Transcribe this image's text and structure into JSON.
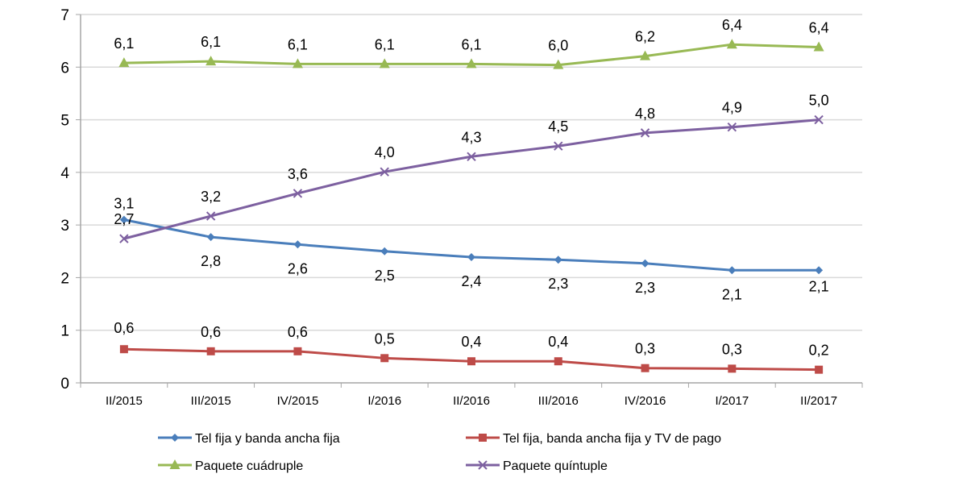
{
  "chart_data": {
    "type": "line",
    "title": "",
    "xlabel": "",
    "ylabel": "",
    "ylim": [
      0,
      7
    ],
    "yticks": [
      "0",
      "1",
      "2",
      "3",
      "4",
      "5",
      "6",
      "7"
    ],
    "grid": true,
    "legend_position": "bottom",
    "categories": [
      "II/2015",
      "III/2015",
      "IV/2015",
      "I/2016",
      "II/2016",
      "III/2016",
      "IV/2016",
      "I/2017",
      "II/2017"
    ],
    "series": [
      {
        "name": "Tel fija y banda ancha fija",
        "color": "#4a7ebb",
        "marker": "diamond",
        "label_position": "mixed",
        "values": [
          3.1,
          2.77,
          2.63,
          2.5,
          2.39,
          2.34,
          2.27,
          2.14,
          2.14
        ],
        "labels": [
          "3,1",
          "2,8",
          "2,6",
          "2,5",
          "2,4",
          "2,3",
          "2,3",
          "2,1",
          "2,1"
        ]
      },
      {
        "name": "Tel fija, banda ancha fija y TV de pago",
        "color": "#be4b48",
        "marker": "square",
        "label_position": "above",
        "values": [
          0.64,
          0.6,
          0.6,
          0.47,
          0.41,
          0.41,
          0.28,
          0.27,
          0.25
        ],
        "labels": [
          "0,6",
          "0,6",
          "0,6",
          "0,5",
          "0,4",
          "0,4",
          "0,3",
          "0,3",
          "0,2"
        ]
      },
      {
        "name": "Paquete cuádruple",
        "color": "#98b954",
        "marker": "triangle",
        "label_position": "above",
        "values": [
          6.08,
          6.11,
          6.06,
          6.06,
          6.06,
          6.04,
          6.21,
          6.43,
          6.38
        ],
        "labels": [
          "6,1",
          "6,1",
          "6,1",
          "6,1",
          "6,1",
          "6,0",
          "6,2",
          "6,4",
          "6,4"
        ]
      },
      {
        "name": "Paquete quíntuple",
        "color": "#7d60a0",
        "marker": "x",
        "label_position": "above",
        "values": [
          2.74,
          3.17,
          3.6,
          4.01,
          4.3,
          4.5,
          4.75,
          4.86,
          5.0
        ],
        "labels": [
          "2,7",
          "3,2",
          "3,6",
          "4,0",
          "4,3",
          "4,5",
          "4,8",
          "4,9",
          "5,0"
        ]
      }
    ]
  }
}
